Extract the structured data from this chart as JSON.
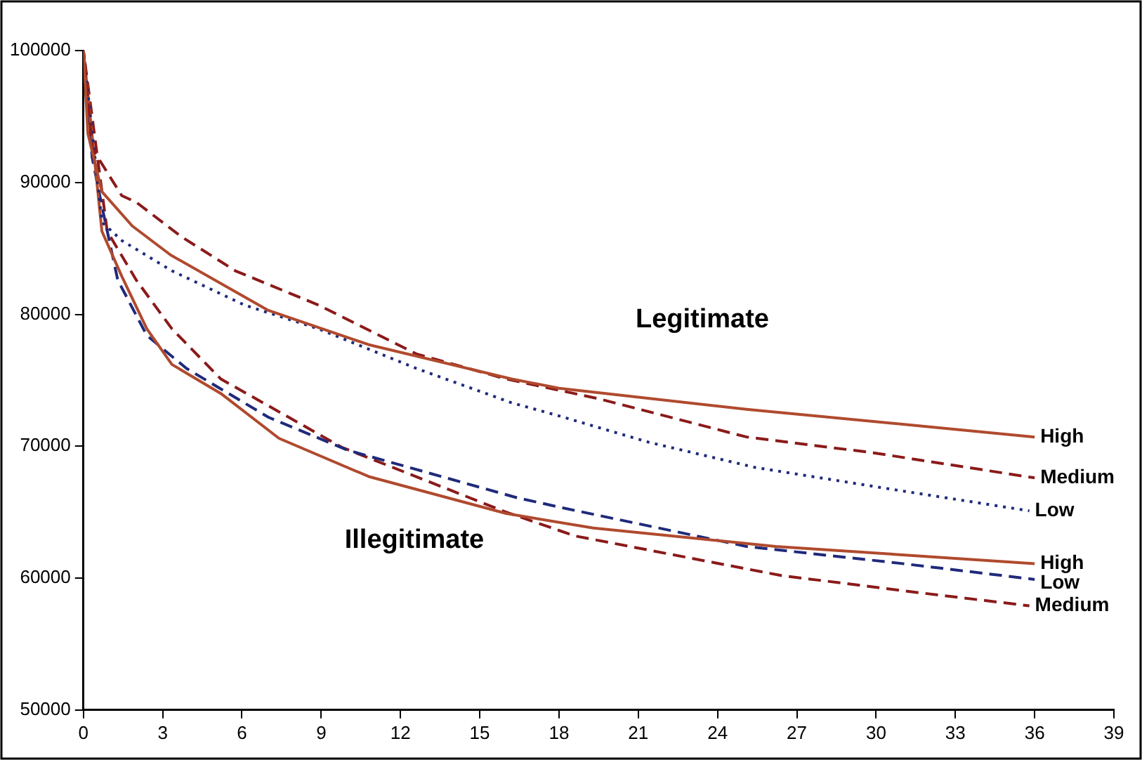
{
  "chart_data": {
    "type": "line",
    "xlim": [
      0,
      39
    ],
    "xticks": [
      0,
      3,
      6,
      9,
      12,
      15,
      18,
      21,
      24,
      27,
      30,
      33,
      36,
      39
    ],
    "ylim": [
      50000,
      100000
    ],
    "yticks": [
      50000,
      60000,
      70000,
      80000,
      90000,
      100000
    ],
    "grid": false,
    "legend": false,
    "marker": "none",
    "series": [
      {
        "name": "High",
        "color": "#b04a2e",
        "line_style": "solid",
        "x": [
          0,
          0.17,
          0.7,
          1.85,
          3.3,
          7,
          10.8,
          16.2,
          18,
          25.1,
          36
        ],
        "values": [
          100000,
          93700,
          89300,
          86700,
          84500,
          80300,
          77700,
          75100,
          74400,
          72800,
          70700
        ]
      },
      {
        "name": "Medium",
        "color": "#8b1a1a",
        "line_style": "dashed",
        "x": [
          0,
          0.33,
          1.45,
          2,
          3.7,
          5.75,
          8.9,
          12.6,
          16,
          19.5,
          25.1,
          29.9,
          36
        ],
        "values": [
          100000,
          92600,
          89000,
          88500,
          85900,
          83300,
          80700,
          77000,
          75100,
          73600,
          70700,
          69500,
          67600
        ]
      },
      {
        "name": "Low",
        "color": "#1f2a7a",
        "line_style": "dotted",
        "x": [
          0,
          0.7,
          1.45,
          3.35,
          6.1,
          8.9,
          12.6,
          16.2,
          18,
          21.4,
          25.4,
          30.7,
          35.8
        ],
        "values": [
          100000,
          87000,
          85600,
          83300,
          80700,
          78900,
          75900,
          73300,
          72300,
          70300,
          68400,
          66700,
          65100
        ]
      },
      {
        "name": "High",
        "color": "#b04a2e",
        "line_style": "solid",
        "x": [
          0,
          0.7,
          1.45,
          2.4,
          3.35,
          5.2,
          7.4,
          10.8,
          16,
          19.3,
          26.2,
          36
        ],
        "values": [
          100000,
          86300,
          82900,
          78900,
          76200,
          74000,
          70600,
          67700,
          64900,
          63800,
          62400,
          61100
        ]
      },
      {
        "name": "Low",
        "color": "#1f2a7a",
        "line_style": "dashed",
        "x": [
          0,
          0.33,
          0.7,
          1.3,
          2.4,
          3.9,
          7,
          10,
          16.4,
          18.2,
          25.1,
          31,
          36
        ],
        "values": [
          100000,
          91900,
          88200,
          82600,
          78400,
          75900,
          72200,
          69700,
          66100,
          65300,
          62400,
          61100,
          59900
        ]
      },
      {
        "name": "Medium",
        "color": "#8b1a1a",
        "line_style": "dashed",
        "x": [
          0,
          0.9,
          2,
          3.35,
          5.2,
          9.8,
          16,
          18.6,
          26.4,
          31.6,
          35.8
        ],
        "values": [
          100000,
          86300,
          82600,
          78900,
          75100,
          69900,
          65000,
          63200,
          60200,
          58900,
          57900
        ]
      }
    ],
    "annotations": [
      "Legitimate",
      "Illegitimate"
    ]
  }
}
